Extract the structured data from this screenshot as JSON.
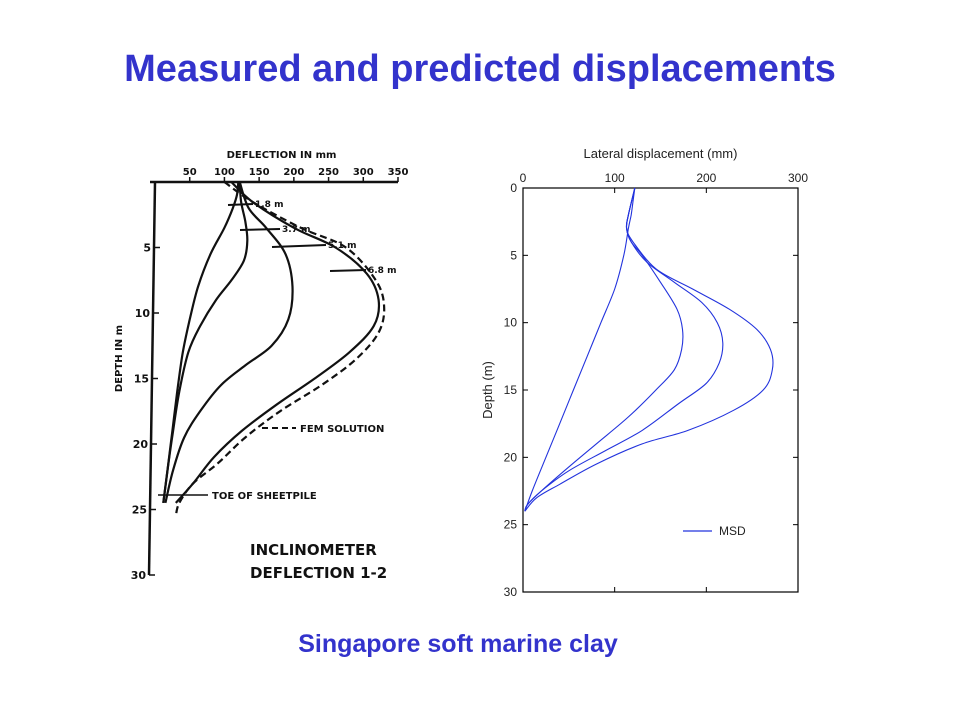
{
  "slide": {
    "title": "Measured and predicted displacements",
    "caption": "Singapore soft marine clay"
  },
  "colors": {
    "title": "#3333cc",
    "left_ink": "#111111",
    "right_line": "#2233dd"
  },
  "chart_data": [
    {
      "type": "line",
      "title": "",
      "xlabel": "DEFLECTION  IN mm",
      "ylabel": "DEPTH  IN  m",
      "xticks": [
        "50",
        "100",
        "150",
        "200",
        "250",
        "300",
        "350"
      ],
      "yticks": [
        "5",
        "10",
        "15",
        "20",
        "25",
        "30"
      ],
      "xlim": [
        0,
        350
      ],
      "ylim": [
        0,
        30
      ],
      "legend": {
        "text": "FEM SOLUTION",
        "style": "dashed",
        "position": "lower-right"
      },
      "annotations": {
        "stage_labels": [
          "1.8 m",
          "3.7 m",
          "5.1 m",
          "6.8 m"
        ],
        "toe_label": "TOE OF SHEETPILE",
        "inclinometer_title": "INCLINOMETER",
        "inclinometer_subtitle": "DEFLECTION 1-2"
      },
      "series": [
        {
          "style": "solid",
          "points": [
            [
              120,
              0
            ],
            [
              118,
              1
            ],
            [
              112,
              2
            ],
            [
              100,
              3.5
            ],
            [
              80,
              5.5
            ],
            [
              62,
              8
            ],
            [
              50,
              10.5
            ],
            [
              40,
              13
            ],
            [
              32,
              16
            ],
            [
              25,
              19
            ],
            [
              18,
              22
            ],
            [
              12,
              24.5
            ]
          ]
        },
        {
          "style": "solid",
          "points": [
            [
              122,
              0
            ],
            [
              124,
              1.5
            ],
            [
              130,
              3
            ],
            [
              133,
              4.5
            ],
            [
              128,
              6
            ],
            [
              110,
              7.5
            ],
            [
              88,
              9
            ],
            [
              65,
              11
            ],
            [
              48,
              13
            ],
            [
              35,
              16
            ],
            [
              26,
              19
            ],
            [
              18,
              22
            ],
            [
              12,
              24.5
            ]
          ]
        },
        {
          "style": "solid",
          "points": [
            [
              122,
              0
            ],
            [
              135,
              2
            ],
            [
              160,
              3.5
            ],
            [
              188,
              5.5
            ],
            [
              198,
              8
            ],
            [
              192,
              10.5
            ],
            [
              168,
              12.5
            ],
            [
              130,
              14
            ],
            [
              95,
              15.5
            ],
            [
              65,
              17.5
            ],
            [
              42,
              19.5
            ],
            [
              26,
              22
            ],
            [
              15,
              24.5
            ]
          ]
        },
        {
          "style": "solid",
          "points": [
            [
              110,
              0
            ],
            [
              140,
              1.5
            ],
            [
              200,
              3.5
            ],
            [
              260,
              5
            ],
            [
              305,
              7
            ],
            [
              322,
              9
            ],
            [
              315,
              11
            ],
            [
              280,
              13
            ],
            [
              230,
              15
            ],
            [
              175,
              17
            ],
            [
              125,
              19
            ],
            [
              85,
              21
            ],
            [
              55,
              23
            ],
            [
              30,
              24.5
            ]
          ]
        },
        {
          "style": "dashed",
          "points": [
            [
              100,
              0
            ],
            [
              140,
              1.5
            ],
            [
              210,
              3.5
            ],
            [
              275,
              5
            ],
            [
              318,
              7.5
            ],
            [
              330,
              9.5
            ],
            [
              322,
              11.5
            ],
            [
              290,
              13.5
            ],
            [
              240,
              15.5
            ],
            [
              180,
              17.5
            ],
            [
              130,
              19.5
            ],
            [
              90,
              21.5
            ],
            [
              55,
              23
            ],
            [
              35,
              24.5
            ],
            [
              30,
              25.5
            ]
          ]
        }
      ]
    },
    {
      "type": "line",
      "title": "",
      "xlabel": "Lateral displacement (mm)",
      "ylabel": "Depth (m)",
      "xticks": [
        "0",
        "100",
        "200",
        "300"
      ],
      "yticks": [
        "0",
        "5",
        "10",
        "15",
        "20",
        "25",
        "30"
      ],
      "xlim": [
        0,
        300
      ],
      "ylim": [
        0,
        30
      ],
      "legend": {
        "text": "MSD",
        "position": "lower-right"
      },
      "series": [
        {
          "points": [
            [
              122,
              0
            ],
            [
              120,
              1
            ],
            [
              118,
              2
            ],
            [
              115,
              3
            ],
            [
              110,
              5
            ],
            [
              100,
              7.5
            ],
            [
              85,
              10
            ],
            [
              70,
              12.5
            ],
            [
              55,
              15
            ],
            [
              40,
              17.5
            ],
            [
              25,
              20
            ],
            [
              10,
              22.5
            ],
            [
              2,
              24
            ]
          ]
        },
        {
          "points": [
            [
              122,
              0
            ],
            [
              115,
              2
            ],
            [
              113,
              3
            ],
            [
              118,
              4
            ],
            [
              130,
              5
            ],
            [
              150,
              7
            ],
            [
              168,
              9
            ],
            [
              174,
              10.5
            ],
            [
              173,
              12
            ],
            [
              165,
              13.5
            ],
            [
              145,
              15
            ],
            [
              115,
              17
            ],
            [
              80,
              19
            ],
            [
              45,
              21
            ],
            [
              20,
              22.5
            ],
            [
              5,
              23.5
            ],
            [
              2,
              24
            ]
          ]
        },
        {
          "points": [
            [
              122,
              0
            ],
            [
              115,
              2
            ],
            [
              113,
              3
            ],
            [
              118,
              4
            ],
            [
              135,
              5.5
            ],
            [
              165,
              7
            ],
            [
              195,
              8.5
            ],
            [
              212,
              10
            ],
            [
              218,
              11.5
            ],
            [
              214,
              13
            ],
            [
              200,
              14.5
            ],
            [
              170,
              16
            ],
            [
              130,
              18
            ],
            [
              90,
              19.5
            ],
            [
              50,
              21
            ],
            [
              20,
              22.5
            ],
            [
              5,
              23.5
            ],
            [
              2,
              24
            ]
          ]
        },
        {
          "points": [
            [
              122,
              0
            ],
            [
              115,
              2
            ],
            [
              113,
              3
            ],
            [
              120,
              4
            ],
            [
              145,
              6
            ],
            [
              185,
              7.5
            ],
            [
              225,
              9
            ],
            [
              255,
              10.5
            ],
            [
              270,
              12
            ],
            [
              272,
              13.5
            ],
            [
              262,
              15
            ],
            [
              230,
              16.5
            ],
            [
              180,
              18
            ],
            [
              130,
              19
            ],
            [
              80,
              20.5
            ],
            [
              40,
              22
            ],
            [
              15,
              23
            ],
            [
              2,
              24
            ]
          ]
        }
      ]
    }
  ]
}
